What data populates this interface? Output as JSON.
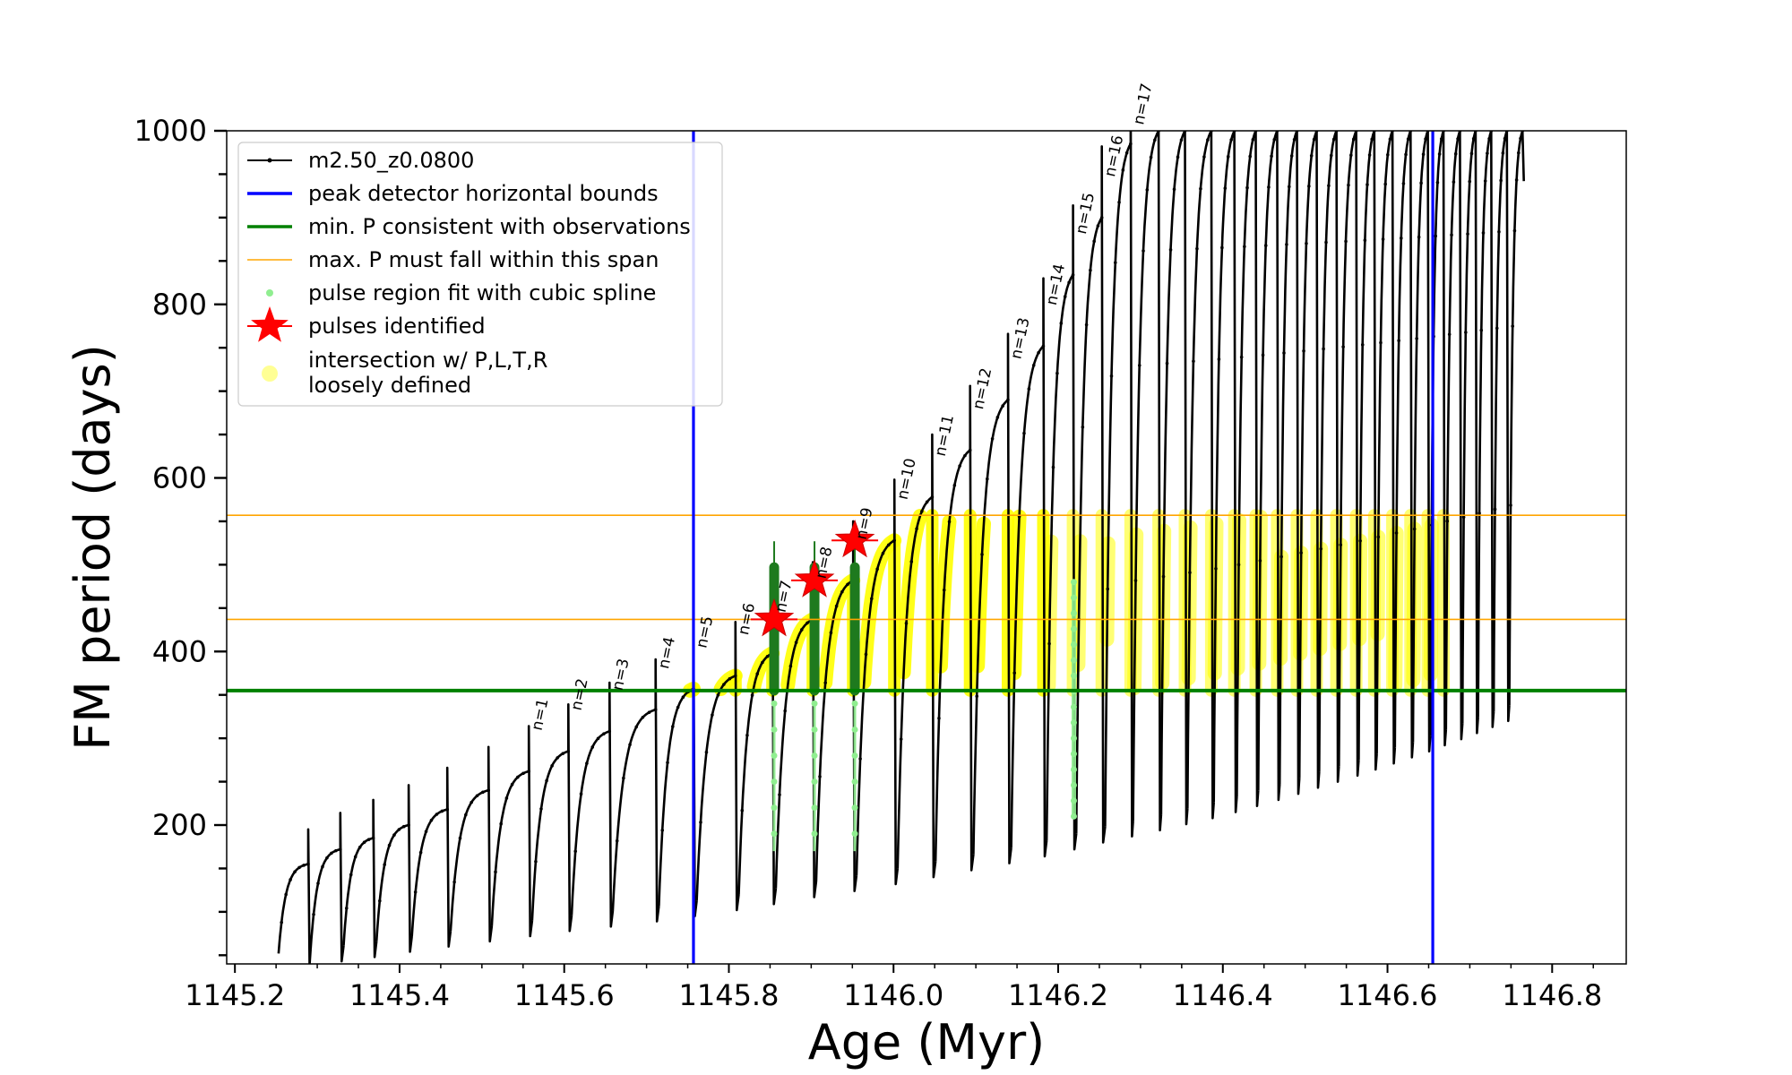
{
  "chart_data": {
    "type": "line",
    "xlabel": "Age (Myr)",
    "ylabel": "FM period (days)",
    "xlim": [
      1145.19,
      1146.89
    ],
    "ylim": [
      40,
      1000
    ],
    "x_ticks": [
      1145.2,
      1145.4,
      1145.6,
      1145.8,
      1146.0,
      1146.2,
      1146.4,
      1146.6,
      1146.8
    ],
    "x_tick_labels": [
      "1145.2",
      "1145.4",
      "1145.6",
      "1145.8",
      "1146.0",
      "1146.2",
      "1146.4",
      "1146.6",
      "1146.8"
    ],
    "y_ticks": [
      200,
      400,
      600,
      800,
      1000
    ],
    "y_tick_labels": [
      "200",
      "400",
      "600",
      "800",
      "1000"
    ],
    "legend": {
      "placement": "upper-left",
      "entries": [
        {
          "label": "m2.50_z0.0800",
          "color": "#000000",
          "kind": "line-marker"
        },
        {
          "label": "peak detector horizontal bounds",
          "color": "#0000ff",
          "kind": "line"
        },
        {
          "label": "min. P consistent with observations",
          "color": "#008000",
          "kind": "line"
        },
        {
          "label": "max. P must fall within this span",
          "color": "#ffa500",
          "kind": "thin-line"
        },
        {
          "label": "pulse region fit with cubic spline",
          "color": "#90ee90",
          "kind": "dot"
        },
        {
          "label": "pulses identified",
          "color": "#ff0000",
          "kind": "star"
        },
        {
          "label": "intersection w/ P,L,T,R",
          "label2": "loosely defined",
          "color": "#ffff66",
          "kind": "big-dot"
        }
      ]
    },
    "vertical_lines": [
      {
        "name": "peak detector horizontal bounds",
        "x": 1145.757,
        "color": "#0000ff"
      },
      {
        "name": "peak detector horizontal bounds",
        "x": 1146.655,
        "color": "#0000ff"
      }
    ],
    "horizontal_lines": [
      {
        "name": "min. P consistent with observations",
        "y": 355,
        "color": "#008000"
      },
      {
        "name": "max. P must fall within this span",
        "y": 437,
        "color": "#ffa500"
      },
      {
        "name": "max. P must fall within this span",
        "y": 557,
        "color": "#ffa500"
      }
    ],
    "pulse_labels": [
      "n=1",
      "n=2",
      "n=3",
      "n=4",
      "n=5",
      "n=6",
      "n=7",
      "n=8",
      "n=9",
      "n=10",
      "n=11",
      "n=12",
      "n=13",
      "n=14",
      "n=15",
      "n=16",
      "n=17"
    ],
    "series": [
      {
        "name": "m2.50_z0.0800",
        "color": "#000000",
        "pulses": [
          {
            "start": 1145.253,
            "end": 1145.289,
            "min": 52,
            "peak": 155
          },
          {
            "start": 1145.292,
            "end": 1145.328,
            "min": 57,
            "peak": 172
          },
          {
            "start": 1145.332,
            "end": 1145.368,
            "min": 61,
            "peak": 185
          },
          {
            "start": 1145.372,
            "end": 1145.411,
            "min": 66,
            "peak": 200
          },
          {
            "start": 1145.415,
            "end": 1145.458,
            "min": 72,
            "peak": 218
          },
          {
            "start": 1145.462,
            "end": 1145.508,
            "min": 78,
            "peak": 240
          },
          {
            "start": 1145.512,
            "end": 1145.557,
            "min": 84,
            "peak": 262
          },
          {
            "start": 1145.561,
            "end": 1145.605,
            "min": 90,
            "peak": 285
          },
          {
            "start": 1145.609,
            "end": 1145.655,
            "min": 96,
            "peak": 308
          },
          {
            "start": 1145.659,
            "end": 1145.711,
            "min": 101,
            "peak": 333
          },
          {
            "start": 1145.715,
            "end": 1145.757,
            "min": 107,
            "peak": 357
          },
          {
            "start": 1145.761,
            "end": 1145.808,
            "min": 113,
            "peak": 372
          },
          {
            "start": 1145.812,
            "end": 1145.853,
            "min": 120,
            "peak": 398
          },
          {
            "start": 1145.857,
            "end": 1145.902,
            "min": 127,
            "peak": 437
          },
          {
            "start": 1145.906,
            "end": 1145.951,
            "min": 135,
            "peak": 482
          },
          {
            "start": 1145.955,
            "end": 1146.001,
            "min": 142,
            "peak": 528
          },
          {
            "start": 1146.005,
            "end": 1146.047,
            "min": 150,
            "peak": 578
          },
          {
            "start": 1146.051,
            "end": 1146.093,
            "min": 158,
            "peak": 632
          },
          {
            "start": 1146.097,
            "end": 1146.139,
            "min": 166,
            "peak": 690
          },
          {
            "start": 1146.143,
            "end": 1146.182,
            "min": 174,
            "peak": 752
          },
          {
            "start": 1146.186,
            "end": 1146.218,
            "min": 182,
            "peak": 834
          },
          {
            "start": 1146.222,
            "end": 1146.253,
            "min": 190,
            "peak": 900
          },
          {
            "start": 1146.257,
            "end": 1146.288,
            "min": 198,
            "peak": 985
          },
          {
            "start": 1146.291,
            "end": 1146.322,
            "min": 205,
            "peak": 1000
          },
          {
            "start": 1146.325,
            "end": 1146.354,
            "min": 212,
            "peak": 1000
          },
          {
            "start": 1146.357,
            "end": 1146.386,
            "min": 219,
            "peak": 1000
          },
          {
            "start": 1146.389,
            "end": 1146.414,
            "min": 226,
            "peak": 1000
          },
          {
            "start": 1146.417,
            "end": 1146.44,
            "min": 233,
            "peak": 1000
          },
          {
            "start": 1146.443,
            "end": 1146.466,
            "min": 240,
            "peak": 1000
          },
          {
            "start": 1146.469,
            "end": 1146.49,
            "min": 247,
            "peak": 1000
          },
          {
            "start": 1146.493,
            "end": 1146.514,
            "min": 254,
            "peak": 1000
          },
          {
            "start": 1146.517,
            "end": 1146.538,
            "min": 261,
            "peak": 1000
          },
          {
            "start": 1146.541,
            "end": 1146.562,
            "min": 268,
            "peak": 1000
          },
          {
            "start": 1146.565,
            "end": 1146.584,
            "min": 275,
            "peak": 1000
          },
          {
            "start": 1146.587,
            "end": 1146.606,
            "min": 282,
            "peak": 1000
          },
          {
            "start": 1146.609,
            "end": 1146.628,
            "min": 289,
            "peak": 1000
          },
          {
            "start": 1146.631,
            "end": 1146.649,
            "min": 296,
            "peak": 1000
          },
          {
            "start": 1146.652,
            "end": 1146.668,
            "min": 303,
            "peak": 1000
          },
          {
            "start": 1146.671,
            "end": 1146.688,
            "min": 310,
            "peak": 1000
          },
          {
            "start": 1146.691,
            "end": 1146.707,
            "min": 317,
            "peak": 1000
          },
          {
            "start": 1146.71,
            "end": 1146.726,
            "min": 324,
            "peak": 1000
          },
          {
            "start": 1146.729,
            "end": 1146.745,
            "min": 331,
            "peak": 1000
          },
          {
            "start": 1146.748,
            "end": 1146.764,
            "min": 338,
            "peak": 1000
          }
        ]
      },
      {
        "name": "pulses identified",
        "color": "#ff0000",
        "points": [
          {
            "x": 1145.855,
            "y": 437
          },
          {
            "x": 1145.904,
            "y": 482
          },
          {
            "x": 1145.953,
            "y": 528
          }
        ]
      },
      {
        "name": "pulse region fit with cubic spline",
        "color": "#90ee90",
        "x": [
          1145.855,
          1145.904,
          1145.953,
          1146.219
        ]
      }
    ]
  }
}
